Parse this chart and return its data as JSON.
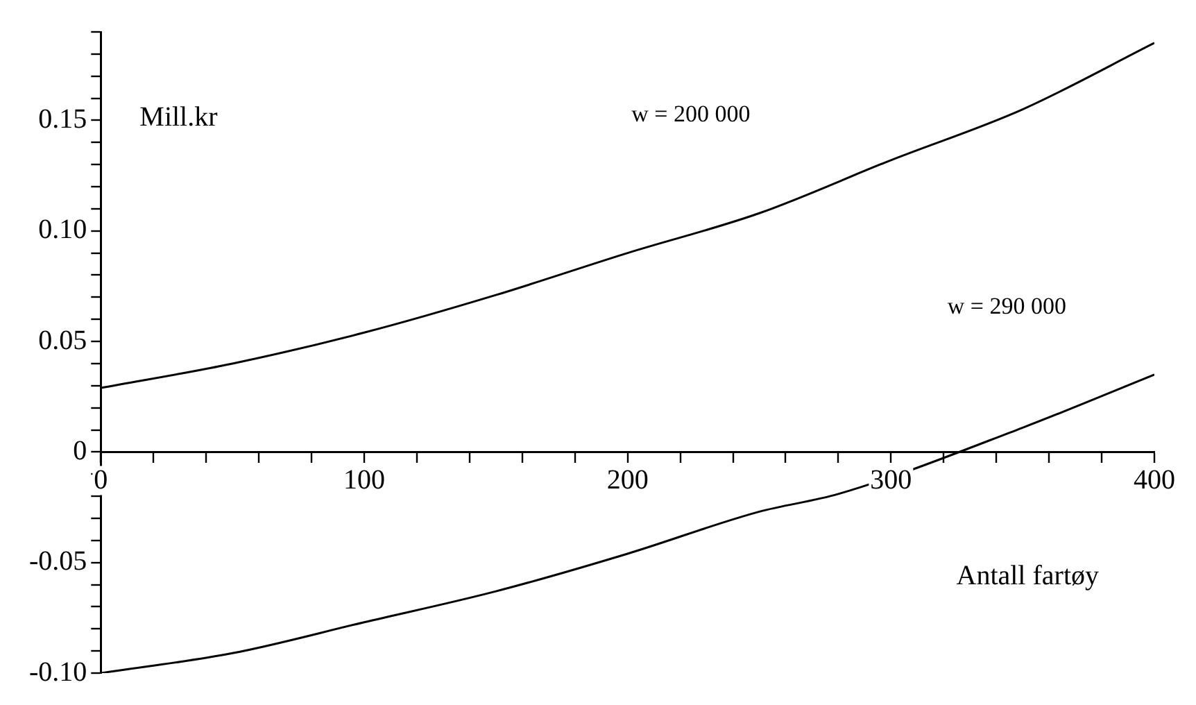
{
  "chart_data": {
    "type": "line",
    "xlabel": "Antall fartøy",
    "ylabel": "Mill.kr",
    "x": [
      0,
      50,
      100,
      150,
      200,
      250,
      300,
      350,
      400
    ],
    "series": [
      {
        "color": "#000000",
        "values": [
          0.029,
          0.04,
          0.054,
          0.071,
          0.09,
          0.108,
          0.132,
          0.155,
          0.185
        ]
      },
      {
        "color": "#000000",
        "x": [
          0,
          50,
          100,
          150,
          200,
          250,
          280,
          350,
          400
        ],
        "values": [
          -0.1,
          -0.091,
          -0.077,
          -0.063,
          -0.046,
          -0.027,
          -0.019,
          0.011,
          0.035
        ]
      }
    ],
    "xlim": [
      0,
      400
    ],
    "xticks": [
      0,
      {
        "value": 20,
        "label": null
      },
      {
        "value": 40,
        "label": null
      },
      {
        "value": 60,
        "label": null
      },
      {
        "value": 80,
        "label": null
      },
      100,
      {
        "value": 120,
        "label": null
      },
      {
        "value": 140,
        "label": null
      },
      {
        "value": 160,
        "label": null
      },
      {
        "value": 180,
        "label": null
      },
      200,
      {
        "value": 220,
        "label": null
      },
      {
        "value": 240,
        "label": null
      },
      {
        "value": 260,
        "label": null
      },
      {
        "value": 280,
        "label": null
      },
      300,
      {
        "value": 320,
        "label": null
      },
      {
        "value": 340,
        "label": null
      },
      {
        "value": 360,
        "label": null
      },
      {
        "value": 380,
        "label": null
      },
      400
    ],
    "ylim": [
      -0.1,
      0.19
    ],
    "yticks": [
      {
        "value": -0.1,
        "label": "-0.10"
      },
      {
        "value": -0.09,
        "label": null
      },
      {
        "value": -0.08,
        "label": null
      },
      {
        "value": -0.07,
        "label": null
      },
      {
        "value": -0.06,
        "label": null
      },
      -0.05,
      {
        "value": -0.04,
        "label": null
      },
      {
        "value": -0.03,
        "label": null
      },
      {
        "value": -0.02,
        "label": null
      },
      {
        "value": -0.01,
        "label": null
      },
      0,
      {
        "value": 0.01,
        "label": null
      },
      {
        "value": 0.02,
        "label": null
      },
      {
        "value": 0.03,
        "label": null
      },
      {
        "value": 0.04,
        "label": null
      },
      0.05,
      {
        "value": 0.06,
        "label": null
      },
      {
        "value": 0.07,
        "label": null
      },
      {
        "value": 0.08,
        "label": null
      },
      {
        "value": 0.09,
        "label": null
      },
      {
        "value": 0.1,
        "label": "0.10"
      },
      {
        "value": 0.11,
        "label": null
      },
      {
        "value": 0.12,
        "label": null
      },
      {
        "value": 0.13,
        "label": null
      },
      {
        "value": 0.14,
        "label": null
      },
      0.15,
      {
        "value": 0.16,
        "label": null
      },
      {
        "value": 0.17,
        "label": null
      },
      {
        "value": 0.18,
        "label": null
      },
      {
        "value": 0.19,
        "label": null
      }
    ],
    "annotations": [
      "w = 200 000",
      "w = 290 000"
    ]
  }
}
